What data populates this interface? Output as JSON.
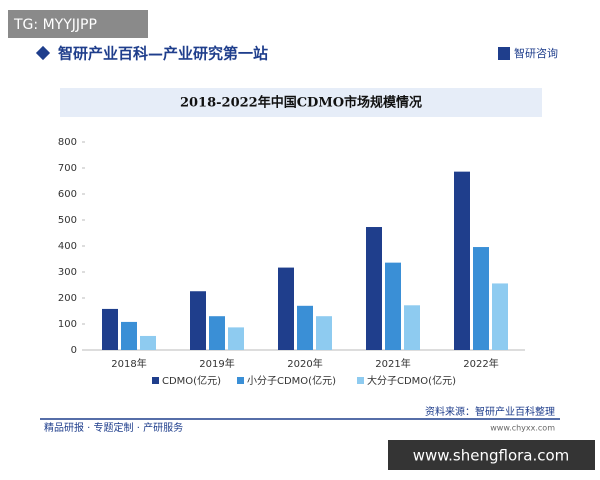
{
  "overlay_tag": "TG: MYYJJPP",
  "header": {
    "title": "智研产业百科—产业研究第一站",
    "brand": "智研咨询"
  },
  "chart_data": {
    "type": "bar",
    "title": "2018-2022年中国CDMO市场规模情况",
    "categories": [
      "2018年",
      "2019年",
      "2020年",
      "2021年",
      "2022年"
    ],
    "series": [
      {
        "name": "CDMO(亿元)",
        "color": "#1f3e8c",
        "values": [
          158,
          226,
          317,
          473,
          686
        ]
      },
      {
        "name": "小分子CDMO(亿元)",
        "color": "#3a8fd6",
        "values": [
          108,
          130,
          170,
          336,
          396
        ]
      },
      {
        "name": "大分子CDMO(亿元)",
        "color": "#8ecbf0",
        "values": [
          54,
          87,
          130,
          172,
          256
        ]
      }
    ],
    "ylim": [
      0,
      800
    ],
    "yticks": [
      0,
      100,
      200,
      300,
      400,
      500,
      600,
      700,
      800
    ]
  },
  "footer": {
    "source": "资料来源：智研产业百科整理",
    "url": "www.chyxx.com",
    "services": "精品研报 · 专题定制 · 产研服务"
  },
  "overlay_url": "www.shengflora.com"
}
